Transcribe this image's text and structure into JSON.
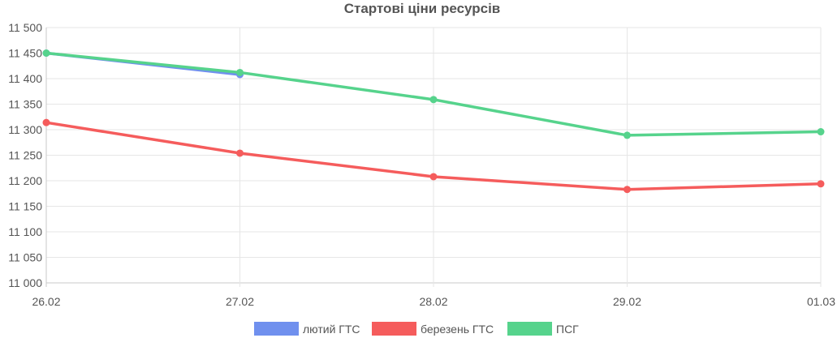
{
  "chart_data": {
    "type": "line",
    "title": "Стартові ціни ресурсів",
    "categories": [
      "26.02",
      "27.02",
      "28.02",
      "29.02",
      "01.03"
    ],
    "ylim": [
      11000,
      11500
    ],
    "yticks": [
      11000,
      11050,
      11100,
      11150,
      11200,
      11250,
      11300,
      11350,
      11400,
      11450,
      11500
    ],
    "ytick_labels": [
      "11 000",
      "11 050",
      "11 100",
      "11 150",
      "11 200",
      "11 250",
      "11 300",
      "11 350",
      "11 400",
      "11 450",
      "11 500"
    ],
    "grid": true,
    "legend_position": "bottom",
    "series": [
      {
        "name": "лютий ГТС",
        "color": "#7090ee",
        "values": [
          11450,
          11408,
          null,
          null,
          null
        ]
      },
      {
        "name": "березень ГТС",
        "color": "#f55c5c",
        "values": [
          11314,
          11254,
          11208,
          11183,
          11194
        ]
      },
      {
        "name": "ПСГ",
        "color": "#56d38c",
        "values": [
          11450,
          11412,
          11359,
          11289,
          11296
        ]
      }
    ]
  }
}
